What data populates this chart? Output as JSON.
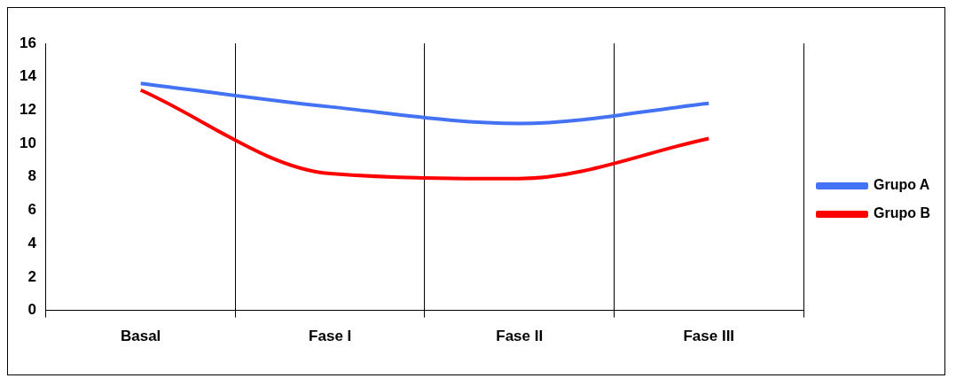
{
  "chart_data": {
    "type": "line",
    "categories": [
      "Basal",
      "Fase I",
      "Fase II",
      "Fase III"
    ],
    "series": [
      {
        "name": "Grupo A",
        "color": "#4472f4",
        "values": [
          13.6,
          12.2,
          11.2,
          12.4
        ]
      },
      {
        "name": "Grupo B",
        "color": "#ff0000",
        "values": [
          13.2,
          8.2,
          7.9,
          10.3
        ]
      }
    ],
    "ylim": [
      0,
      16
    ],
    "yticks": [
      0,
      2,
      4,
      6,
      8,
      10,
      12,
      14,
      16
    ],
    "grid": "x",
    "legend": "right",
    "marker": "none",
    "line_style": "solid"
  }
}
